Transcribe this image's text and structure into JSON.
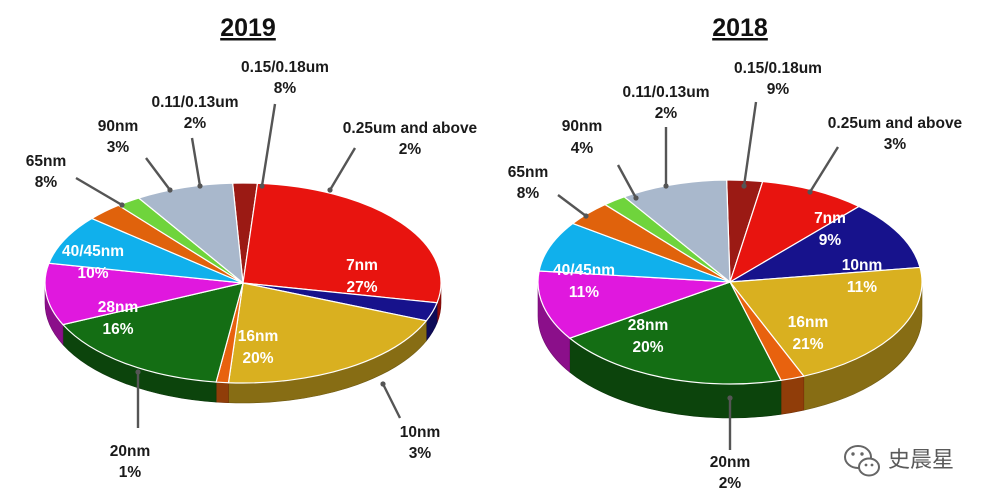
{
  "chart_data": [
    {
      "type": "pie",
      "title": "2019",
      "slices": [
        {
          "label": "0.25um and above",
          "value": 2,
          "value_label": "2%",
          "color": "#9b1a14"
        },
        {
          "label": "7nm",
          "value": 27,
          "value_label": "27%",
          "color": "#e8140f"
        },
        {
          "label": "10nm",
          "value": 3,
          "value_label": "3%",
          "color": "#17128c"
        },
        {
          "label": "16nm",
          "value": 20,
          "value_label": "20%",
          "color": "#d9b020"
        },
        {
          "label": "20nm",
          "value": 1,
          "value_label": "1%",
          "color": "#e8620e"
        },
        {
          "label": "28nm",
          "value": 16,
          "value_label": "16%",
          "color": "#146e14"
        },
        {
          "label": "40/45nm",
          "value": 10,
          "value_label": "10%",
          "color": "#e018de"
        },
        {
          "label": "65nm",
          "value": 8,
          "value_label": "8%",
          "color": "#10b0ec"
        },
        {
          "label": "90nm",
          "value": 3,
          "value_label": "3%",
          "color": "#e0620c"
        },
        {
          "label": "0.11/0.13um",
          "value": 2,
          "value_label": "2%",
          "color": "#6fd43c"
        },
        {
          "label": "0.15/0.18um",
          "value": 8,
          "value_label": "8%",
          "color": "#a9b8cc"
        }
      ]
    },
    {
      "type": "pie",
      "title": "2018",
      "slices": [
        {
          "label": "0.25um and above",
          "value": 3,
          "value_label": "3%",
          "color": "#9b1a14"
        },
        {
          "label": "7nm",
          "value": 9,
          "value_label": "9%",
          "color": "#e8140f"
        },
        {
          "label": "10nm",
          "value": 11,
          "value_label": "11%",
          "color": "#17128c"
        },
        {
          "label": "16nm",
          "value": 21,
          "value_label": "21%",
          "color": "#d9b020"
        },
        {
          "label": "20nm",
          "value": 2,
          "value_label": "2%",
          "color": "#e8620e"
        },
        {
          "label": "28nm",
          "value": 20,
          "value_label": "20%",
          "color": "#146e14"
        },
        {
          "label": "40/45nm",
          "value": 11,
          "value_label": "11%",
          "color": "#e018de"
        },
        {
          "label": "65nm",
          "value": 8,
          "value_label": "8%",
          "color": "#10b0ec"
        },
        {
          "label": "90nm",
          "value": 4,
          "value_label": "4%",
          "color": "#e0620c"
        },
        {
          "label": "0.11/0.13um",
          "value": 2,
          "value_label": "2%",
          "color": "#6fd43c"
        },
        {
          "label": "0.15/0.18um",
          "value": 9,
          "value_label": "9%",
          "color": "#a9b8cc"
        }
      ]
    }
  ],
  "watermark": {
    "text": "史晨星",
    "icon": "wechat-icon"
  }
}
